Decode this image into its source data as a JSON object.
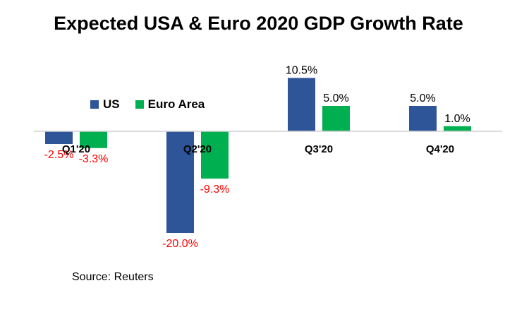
{
  "chart_data": {
    "type": "bar",
    "title": "Expected USA & Euro 2020 GDP Growth Rate",
    "categories": [
      "Q1'20",
      "Q2'20",
      "Q3'20",
      "Q4'20"
    ],
    "series": [
      {
        "name": "US",
        "color": "#2e5597",
        "values": [
          -2.5,
          -20.0,
          10.5,
          5.0
        ],
        "labels": [
          "-2.5%",
          "-20.0%",
          "10.5%",
          "5.0%"
        ]
      },
      {
        "name": "Euro Area",
        "color": "#00b050",
        "values": [
          -3.3,
          -9.3,
          5.0,
          1.0
        ],
        "labels": [
          "-3.3%",
          "-9.3%",
          "5.0%",
          "1.0%"
        ]
      }
    ],
    "negative_label_color": "#ff0000",
    "positive_label_color": "#000000",
    "ylim": [
      -22,
      12
    ],
    "legend_position": "left",
    "grid": false,
    "source": "Source: Reuters"
  }
}
